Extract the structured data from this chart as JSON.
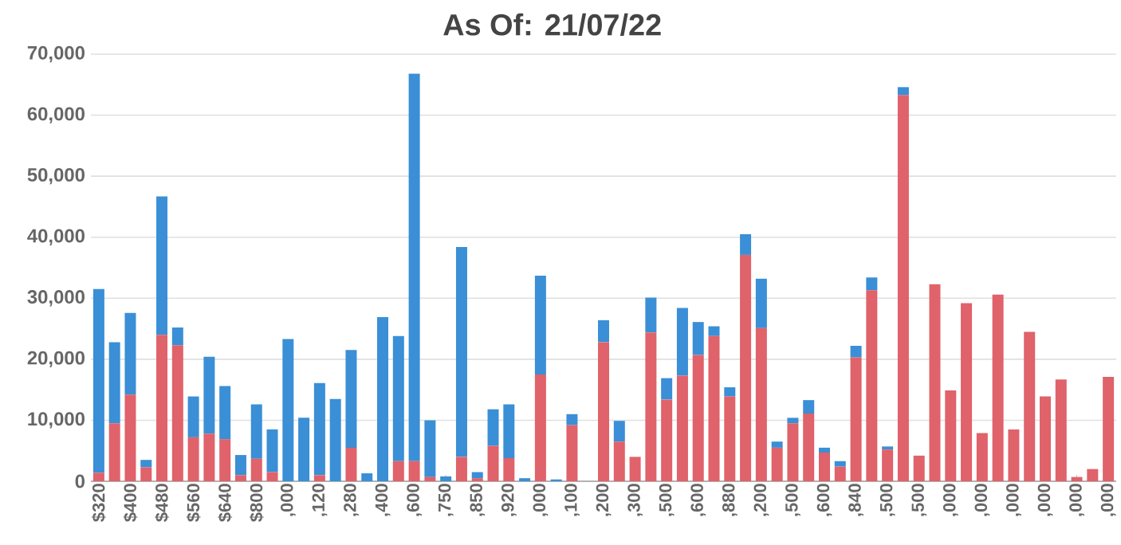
{
  "chart_data": {
    "type": "bar",
    "title": "As Of: 21/07/22",
    "stacked": true,
    "grid": "y",
    "categories": [
      "$320",
      null,
      "$400",
      null,
      "$480",
      null,
      "$560",
      null,
      "$640",
      null,
      "$800",
      null,
      ",000",
      null,
      ",120",
      null,
      ",280",
      null,
      ",400",
      null,
      ",600",
      null,
      ",750",
      null,
      ",850",
      null,
      ",920",
      null,
      ",000",
      null,
      ",100",
      null,
      ",200",
      null,
      ",300",
      null,
      ",500",
      null,
      ",600",
      null,
      ",880",
      null,
      ",200",
      null,
      ",500",
      null,
      ",600",
      null,
      ",840",
      null,
      ",500",
      null,
      ",500",
      null,
      ",000",
      null,
      ",000",
      null,
      ",000",
      null,
      ",000",
      null,
      ",000",
      null,
      ",000"
    ],
    "series": [
      {
        "color": "#e0626a",
        "values": [
          1400,
          9500,
          14200,
          2300,
          24000,
          22300,
          7200,
          7800,
          6900,
          1000,
          3700,
          1500,
          0,
          0,
          1000,
          0,
          5500,
          0,
          0,
          3300,
          3300,
          700,
          0,
          4000,
          500,
          5800,
          3800,
          0,
          17500,
          0,
          9200,
          0,
          22800,
          6500,
          4000,
          24400,
          13400,
          17300,
          20700,
          23800,
          13900,
          37100,
          25100,
          5500,
          9500,
          11100,
          4700,
          2400,
          20300,
          31300,
          5200,
          63300,
          4200,
          32300,
          14900,
          29200,
          7900,
          30600,
          8500,
          24500,
          13900,
          16700,
          700,
          2000,
          17100
        ]
      },
      {
        "color": "#3a8fd6",
        "values": [
          30100,
          13300,
          13400,
          1200,
          22700,
          2900,
          6700,
          12600,
          8700,
          3300,
          8900,
          7000,
          23300,
          10400,
          15100,
          13500,
          16000,
          1300,
          26900,
          20500,
          63500,
          9300,
          800,
          34400,
          1000,
          6000,
          8800,
          500,
          16200,
          300,
          1800,
          0,
          3600,
          3400,
          0,
          5700,
          3500,
          11100,
          5400,
          1600,
          1500,
          3400,
          8100,
          1000,
          900,
          2200,
          800,
          900,
          1900,
          2100,
          500,
          1300,
          0,
          0,
          0,
          0,
          0,
          0,
          0,
          0,
          0,
          0,
          0,
          0,
          0
        ]
      }
    ],
    "ylim": [
      0,
      70000
    ],
    "yticks": [
      {
        "value": 0,
        "label": "0"
      },
      {
        "value": 10000,
        "label": "10,000"
      },
      {
        "value": 20000,
        "label": "20,000"
      },
      {
        "value": 30000,
        "label": "30,000"
      },
      {
        "value": 40000,
        "label": "40,000"
      },
      {
        "value": 50000,
        "label": "50,000"
      },
      {
        "value": 60000,
        "label": "60,000"
      },
      {
        "value": 70000,
        "label": "70,000"
      }
    ]
  }
}
